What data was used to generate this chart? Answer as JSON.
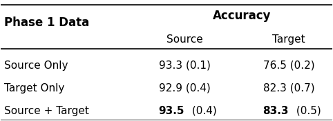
{
  "title_col": "Phase 1 Data",
  "header_group": "Accuracy",
  "subheaders": [
    "Source",
    "Target"
  ],
  "rows": [
    {
      "label": "Source Only",
      "source_bold": "",
      "source_val": "93.3",
      "source_std": " (0.1)",
      "target_bold": "",
      "target_val": "76.5",
      "target_std": " (0.2)"
    },
    {
      "label": "Target Only",
      "source_bold": "",
      "source_val": "92.9",
      "source_std": " (0.4)",
      "target_bold": "",
      "target_val": "82.3",
      "target_std": " (0.7)"
    },
    {
      "label": "Source + Target",
      "source_bold": "93.5",
      "source_val": "",
      "source_std": " (0.4)",
      "target_bold": "83.3",
      "target_val": "",
      "target_std": " (0.5)"
    }
  ],
  "bg_color": "#ffffff",
  "text_color": "#000000",
  "font_size": 11,
  "header_font_size": 12
}
